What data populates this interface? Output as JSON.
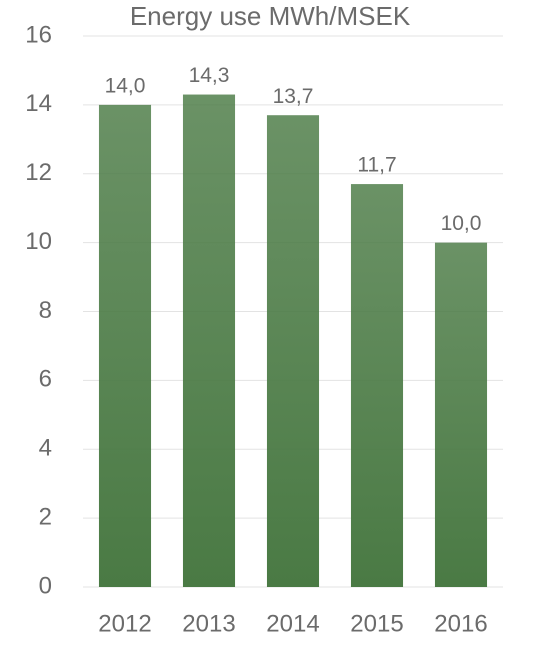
{
  "chart_data": {
    "type": "bar",
    "title": "Energy use MWh/MSEK",
    "categories": [
      "2012",
      "2013",
      "2014",
      "2015",
      "2016"
    ],
    "values": [
      14.0,
      14.3,
      13.7,
      11.7,
      10.0
    ],
    "value_labels": [
      "14,0",
      "14,3",
      "13,7",
      "11,7",
      "10,0"
    ],
    "color": "#4a7a44",
    "ylim": [
      0,
      16
    ],
    "yticks": [
      0,
      2,
      4,
      6,
      8,
      10,
      12,
      14,
      16
    ],
    "grid": true
  }
}
